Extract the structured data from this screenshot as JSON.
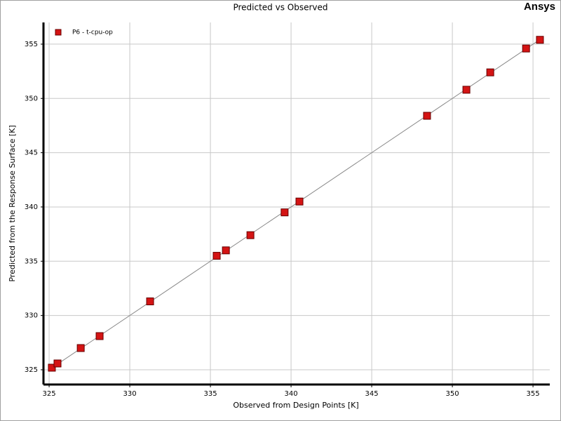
{
  "brand": "Ansys",
  "chart_data": {
    "type": "scatter",
    "title": "Predicted vs Observed",
    "x_label": "Observed from Design Points  [K]",
    "y_label": "Predicted from the Response Surface  [K]",
    "series": [
      {
        "name": "P6 - t-cpu-op",
        "color": "#d41414",
        "x": [
          325.17,
          325.52,
          326.96,
          328.13,
          331.26,
          335.39,
          335.96,
          337.48,
          339.6,
          340.52,
          348.43,
          350.87,
          352.35,
          354.57,
          355.43
        ],
        "values": [
          325.19,
          325.58,
          327.0,
          328.1,
          331.3,
          335.5,
          336.0,
          337.4,
          339.5,
          340.5,
          348.4,
          350.8,
          352.4,
          354.6,
          355.4
        ]
      }
    ],
    "xlim": [
      324.65,
      356.04
    ],
    "ylim": [
      323.64,
      357.0
    ],
    "xticks": [
      325,
      330,
      335,
      340,
      345,
      350,
      355
    ],
    "yticks": [
      325,
      330,
      335,
      340,
      345,
      350,
      355
    ],
    "grid": true,
    "legend": "upper-left"
  }
}
